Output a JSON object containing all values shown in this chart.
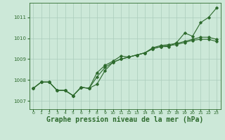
{
  "bg_color": "#cce8d8",
  "grid_color": "#aaccbb",
  "line_color": "#2d6a2d",
  "marker_color": "#2d6a2d",
  "xlabel": "Graphe pression niveau de la mer (hPa)",
  "xlabel_fontsize": 7,
  "xlim": [
    -0.5,
    23.5
  ],
  "ylim": [
    1006.6,
    1011.7
  ],
  "yticks": [
    1007,
    1008,
    1009,
    1010,
    1011
  ],
  "xticks": [
    0,
    1,
    2,
    3,
    4,
    5,
    6,
    7,
    8,
    9,
    10,
    11,
    12,
    13,
    14,
    15,
    16,
    17,
    18,
    19,
    20,
    21,
    22,
    23
  ],
  "series": [
    [
      1007.6,
      1007.9,
      1007.9,
      1007.5,
      1007.55,
      1007.25,
      1007.7,
      1007.65,
      1008.35,
      1008.7,
      1008.9,
      1009.15,
      1009.1,
      1009.2,
      1009.3,
      1009.5,
      1009.6,
      1009.6,
      1009.8,
      1010.25,
      1010.1,
      1010.75,
      1011.0,
      1011.45
    ],
    [
      1007.6,
      1007.9,
      1007.9,
      1007.5,
      1007.55,
      1007.25,
      1007.7,
      1007.65,
      1008.05,
      1008.5,
      1008.75,
      1008.9,
      1009.05,
      1009.2,
      1009.3,
      1009.5,
      1009.6,
      1009.65,
      1009.7,
      1009.8,
      1009.85,
      1009.95,
      1009.95,
      1009.85
    ],
    [
      1007.6,
      1007.9,
      1007.9,
      1007.5,
      1007.55,
      1007.25,
      1007.7,
      1007.65,
      1008.15,
      1008.6,
      1008.85,
      1009.0,
      1009.1,
      1009.2,
      1009.3,
      1009.55,
      1009.65,
      1009.7,
      1009.75,
      1009.85,
      1009.95,
      1010.05,
      1010.05,
      1009.95
    ]
  ],
  "series_dip": [
    1007.6,
    1007.9,
    1007.9,
    1007.5,
    1007.5,
    1007.25,
    1007.7,
    1007.6,
    1007.85,
    1008.45,
    1008.8,
    1008.9,
    1009.05,
    1009.2,
    1009.3,
    1009.5,
    1009.6,
    1009.65,
    1009.7,
    1009.8,
    1009.9,
    1009.95,
    1009.95,
    1009.85
  ]
}
